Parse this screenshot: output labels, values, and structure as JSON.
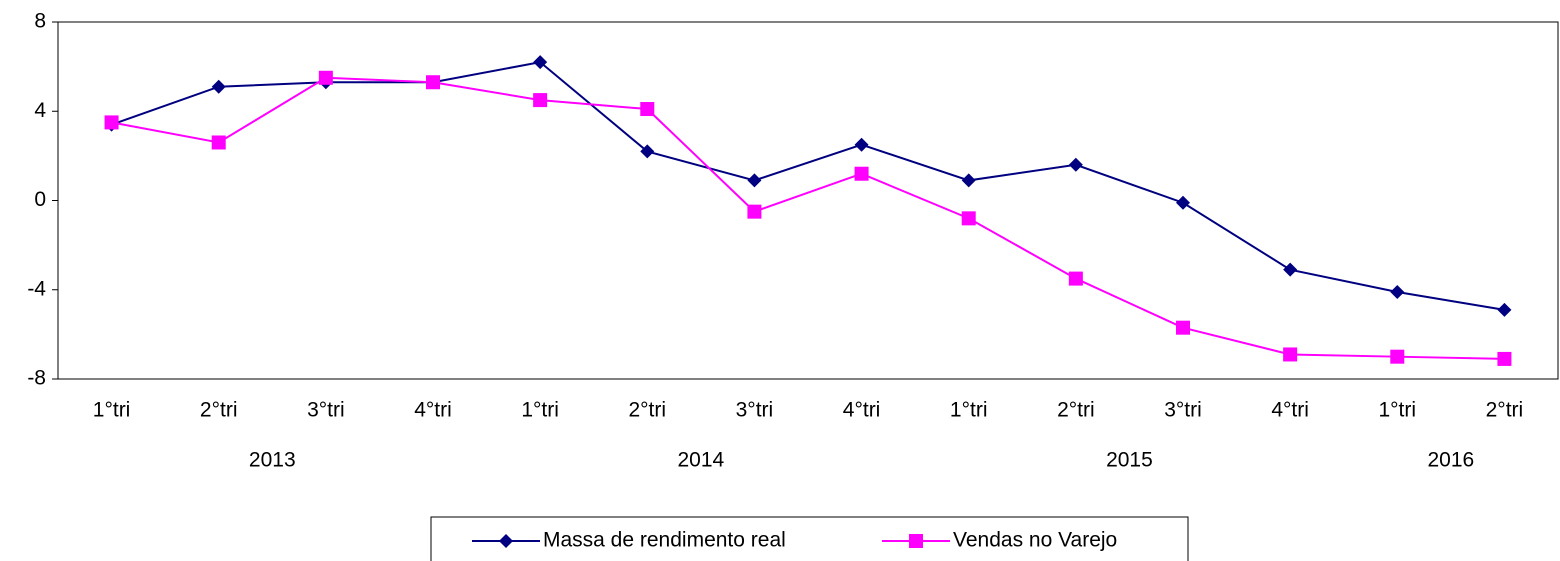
{
  "chart_data": {
    "type": "line",
    "groups": [
      {
        "label": "2013",
        "categories": [
          "1°tri",
          "2°tri",
          "3°tri",
          "4°tri"
        ]
      },
      {
        "label": "2014",
        "categories": [
          "1°tri",
          "2°tri",
          "3°tri",
          "4°tri"
        ]
      },
      {
        "label": "2015",
        "categories": [
          "1°tri",
          "2°tri",
          "3°tri",
          "4°tri"
        ]
      },
      {
        "label": "2016",
        "categories": [
          "1°tri",
          "2°tri"
        ]
      }
    ],
    "series": [
      {
        "name": "Massa de rendimento real",
        "color": "#000080",
        "marker": "diamond",
        "values": [
          3.4,
          5.1,
          5.3,
          5.3,
          6.2,
          2.2,
          0.9,
          2.5,
          0.9,
          1.6,
          -0.1,
          -3.1,
          -4.1,
          -4.9
        ]
      },
      {
        "name": "Vendas no Varejo",
        "color": "#ff00ff",
        "marker": "square",
        "values": [
          3.5,
          2.6,
          5.5,
          5.3,
          4.5,
          4.1,
          -0.5,
          1.2,
          -0.8,
          -3.5,
          -5.7,
          -6.9,
          -7.0,
          -7.1
        ]
      }
    ],
    "ylim": [
      -8,
      8
    ],
    "yticks": [
      -8,
      -4,
      0,
      4,
      8
    ],
    "grid": false,
    "legend": "bottom"
  }
}
